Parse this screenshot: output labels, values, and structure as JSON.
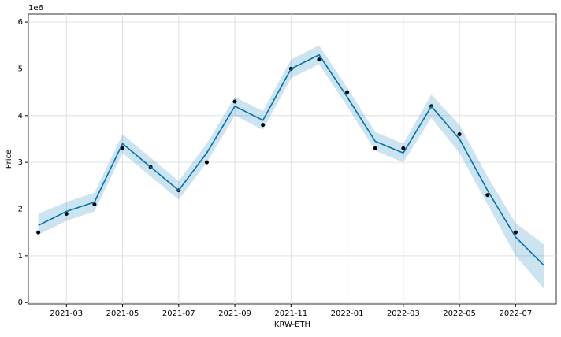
{
  "chart_data": {
    "type": "forecast",
    "x_label": "KRW-ETH",
    "y_label": "Price",
    "y_offset_label": "1e6",
    "x": [
      "2021-02",
      "2021-03",
      "2021-04",
      "2021-05",
      "2021-06",
      "2021-07",
      "2021-08",
      "2021-09",
      "2021-10",
      "2021-11",
      "2021-12",
      "2022-01",
      "2022-02",
      "2022-03",
      "2022-04",
      "2022-05",
      "2022-06",
      "2022-07",
      "2022-08"
    ],
    "series": [
      {
        "name": "actual",
        "color": "#000000",
        "values": [
          1.5,
          1.9,
          2.1,
          3.3,
          2.9,
          2.4,
          3.0,
          4.3,
          3.8,
          5.0,
          5.2,
          4.5,
          3.3,
          3.3,
          4.2,
          3.6,
          2.3,
          1.5,
          null
        ]
      },
      {
        "name": "forecast",
        "color": "#0072b2",
        "values": [
          1.65,
          1.95,
          2.15,
          3.4,
          2.9,
          2.4,
          3.2,
          4.2,
          3.9,
          5.0,
          5.3,
          4.4,
          3.45,
          3.2,
          4.2,
          3.5,
          2.4,
          1.4,
          0.8
        ]
      },
      {
        "name": "lower",
        "color": "#0072b2",
        "values": [
          1.45,
          1.75,
          1.95,
          3.2,
          2.7,
          2.2,
          3.0,
          4.0,
          3.7,
          4.8,
          5.1,
          4.2,
          3.25,
          3.0,
          3.95,
          3.2,
          2.1,
          1.0,
          0.3
        ]
      },
      {
        "name": "upper",
        "color": "#0072b2",
        "values": [
          1.9,
          2.15,
          2.35,
          3.6,
          3.1,
          2.6,
          3.4,
          4.4,
          4.1,
          5.2,
          5.5,
          4.6,
          3.65,
          3.4,
          4.45,
          3.8,
          2.7,
          1.7,
          1.25
        ]
      }
    ],
    "xlim": [
      "2021-01",
      "2022-08"
    ],
    "xticks": [
      "2021-03",
      "2021-05",
      "2021-07",
      "2021-09",
      "2021-11",
      "2022-01",
      "2022-03",
      "2022-05",
      "2022-07"
    ],
    "ylim": [
      -0.03,
      6.17
    ],
    "yticks": [
      0,
      1,
      2,
      3,
      4,
      5,
      6
    ],
    "grid": true
  }
}
